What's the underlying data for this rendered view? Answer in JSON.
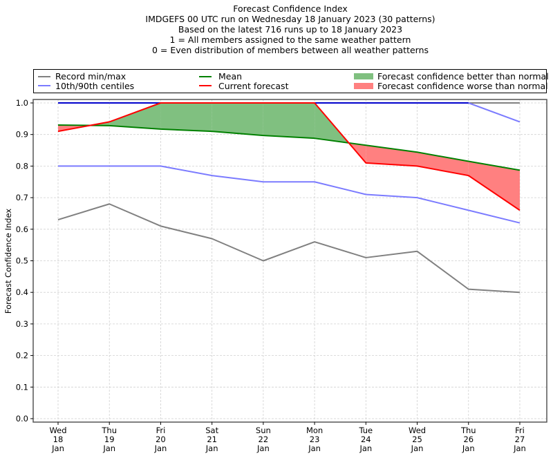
{
  "chart_data": {
    "type": "line",
    "title_lines": [
      "Forecast Confidence Index",
      "IMDGEFS 00 UTC run on Wednesday 18 January 2023 (30 patterns)",
      "Based on the latest 716 runs up to 18 January 2023",
      "1 = All members assigned to the same weather pattern",
      "0 = Even distribution of members between all weather patterns"
    ],
    "xlabel": "",
    "ylabel": "Forecast Confidence Index",
    "ylim": [
      0.0,
      1.0
    ],
    "yticks": [
      "0.0",
      "0.1",
      "0.2",
      "0.3",
      "0.4",
      "0.5",
      "0.6",
      "0.7",
      "0.8",
      "0.9",
      "1.0"
    ],
    "grid": true,
    "legend_position": "top (above plot, 3 columns)",
    "categories": [
      {
        "day": "Wed",
        "date": "18",
        "month": "Jan"
      },
      {
        "day": "Thu",
        "date": "19",
        "month": "Jan"
      },
      {
        "day": "Fri",
        "date": "20",
        "month": "Jan"
      },
      {
        "day": "Sat",
        "date": "21",
        "month": "Jan"
      },
      {
        "day": "Sun",
        "date": "22",
        "month": "Jan"
      },
      {
        "day": "Mon",
        "date": "23",
        "month": "Jan"
      },
      {
        "day": "Tue",
        "date": "24",
        "month": "Jan"
      },
      {
        "day": "Wed",
        "date": "25",
        "month": "Jan"
      },
      {
        "day": "Thu",
        "date": "26",
        "month": "Jan"
      },
      {
        "day": "Fri",
        "date": "27",
        "month": "Jan"
      }
    ],
    "series": [
      {
        "name": "Record max",
        "legend": "Record min/max",
        "color": "#808080",
        "values": [
          1.0,
          1.0,
          1.0,
          1.0,
          1.0,
          1.0,
          1.0,
          1.0,
          1.0,
          1.0
        ]
      },
      {
        "name": "Record min",
        "legend": "Record min/max",
        "color": "#808080",
        "values": [
          0.63,
          0.68,
          0.61,
          0.57,
          0.5,
          0.56,
          0.51,
          0.53,
          0.41,
          0.4
        ]
      },
      {
        "name": "90th centile",
        "legend": "10th/90th centiles",
        "color": "#7b7bff",
        "values": [
          1.0,
          1.0,
          1.0,
          1.0,
          1.0,
          1.0,
          1.0,
          1.0,
          1.0,
          0.94
        ]
      },
      {
        "name": "10th centile",
        "legend": "10th/90th centiles",
        "color": "#7b7bff",
        "values": [
          0.8,
          0.8,
          0.8,
          0.77,
          0.75,
          0.75,
          0.71,
          0.7,
          0.66,
          0.62
        ]
      },
      {
        "name": "Mean",
        "legend": "Mean",
        "color": "#008000",
        "values": [
          0.93,
          0.928,
          0.917,
          0.91,
          0.897,
          0.888,
          0.866,
          0.844,
          0.815,
          0.787
        ]
      },
      {
        "name": "Current forecast",
        "legend": "Current forecast",
        "color": "#ff0000",
        "values": [
          0.91,
          0.94,
          1.0,
          1.0,
          1.0,
          1.0,
          0.81,
          0.8,
          0.77,
          0.66
        ]
      }
    ],
    "fills": [
      {
        "name": "Forecast confidence better than normal",
        "color": "#80c080",
        "between": [
          "Current forecast",
          "Mean"
        ],
        "where": "current > mean"
      },
      {
        "name": "Forecast confidence worse than normal",
        "color": "#ff8080",
        "between": [
          "Current forecast",
          "Mean"
        ],
        "where": "current < mean"
      }
    ],
    "overlap_line": {
      "name": "Overlap of 90th centile and record max at 1.0",
      "color": "#0000cc"
    },
    "legend": [
      {
        "label": "Record min/max",
        "kind": "line",
        "color": "#808080"
      },
      {
        "label": "10th/90th centiles",
        "kind": "line",
        "color": "#7b7bff"
      },
      {
        "label": "Mean",
        "kind": "line",
        "color": "#008000"
      },
      {
        "label": "Current forecast",
        "kind": "line",
        "color": "#ff0000"
      },
      {
        "label": "Forecast confidence better than normal",
        "kind": "patch",
        "color": "#80c080"
      },
      {
        "label": "Forecast confidence worse than normal",
        "kind": "patch",
        "color": "#ff8080"
      }
    ]
  }
}
